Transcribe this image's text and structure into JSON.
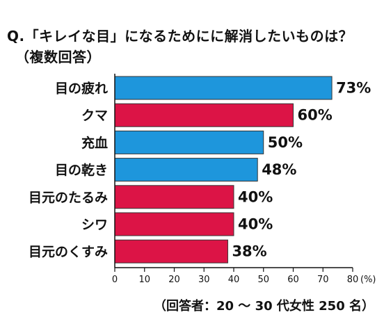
{
  "title": {
    "line1": "Q.「キレイな目」になるためにに解消したいものは？",
    "line2": "（複数回答）"
  },
  "note": "（回答者：20 ～ 30 代女性 250 名）",
  "colors": {
    "blue": "#1e96dc",
    "red": "#dc1446",
    "axis": "#111111"
  },
  "chart_data": {
    "type": "bar",
    "orientation": "horizontal",
    "categories": [
      "目の疲れ",
      "クマ",
      "充血",
      "目の乾き",
      "目元のたるみ",
      "シワ",
      "目元のくすみ"
    ],
    "values": [
      73,
      60,
      50,
      48,
      40,
      40,
      38
    ],
    "value_labels": [
      "73%",
      "60%",
      "50%",
      "48%",
      "40%",
      "40%",
      "38%"
    ],
    "bar_colors": [
      "blue",
      "red",
      "blue",
      "blue",
      "red",
      "red",
      "red"
    ],
    "xlim": [
      0,
      80
    ],
    "xticks": [
      0,
      10,
      20,
      30,
      40,
      50,
      60,
      70,
      80
    ],
    "tick_labels": [
      "0",
      "10",
      "20",
      "30",
      "40",
      "50",
      "60",
      "70",
      "80"
    ],
    "x_unit": "(%)",
    "grid": false
  }
}
